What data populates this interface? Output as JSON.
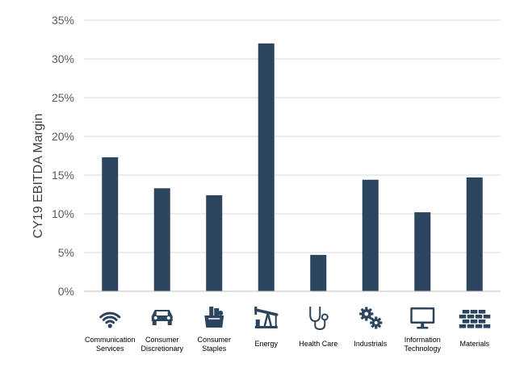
{
  "chart_data": {
    "type": "bar",
    "ylabel": "CY19 EBITDA Margin",
    "xlabel": "",
    "ylim": [
      0,
      35
    ],
    "yticks": [
      "0%",
      "5%",
      "10%",
      "15%",
      "20%",
      "25%",
      "30%",
      "35%"
    ],
    "grid": true,
    "categories": [
      {
        "name": "Communication Services",
        "lines": [
          "Communication",
          "Services"
        ],
        "icon": "wifi-icon",
        "value": 17.3
      },
      {
        "name": "Consumer Discretionary",
        "lines": [
          "Consumer",
          "Discretionary"
        ],
        "icon": "car-icon",
        "value": 13.3
      },
      {
        "name": "Consumer Staples",
        "lines": [
          "Consumer",
          "Staples"
        ],
        "icon": "grocery-bag-icon",
        "value": 12.4
      },
      {
        "name": "Energy",
        "lines": [
          "Energy"
        ],
        "icon": "oil-pump-icon",
        "value": 32.0
      },
      {
        "name": "Health Care",
        "lines": [
          "Health Care"
        ],
        "icon": "stethoscope-icon",
        "value": 4.7
      },
      {
        "name": "Industrials",
        "lines": [
          "Industrials"
        ],
        "icon": "gears-icon",
        "value": 14.4
      },
      {
        "name": "Information Technology",
        "lines": [
          "Information",
          "Technology"
        ],
        "icon": "monitor-icon",
        "value": 10.2
      },
      {
        "name": "Materials",
        "lines": [
          "Materials"
        ],
        "icon": "bricks-icon",
        "value": 14.7
      }
    ],
    "colors": {
      "bar": "#2b4560",
      "grid": "#d9d9d9",
      "axis": "#bfbfbf",
      "icon": "#2b4560"
    }
  }
}
